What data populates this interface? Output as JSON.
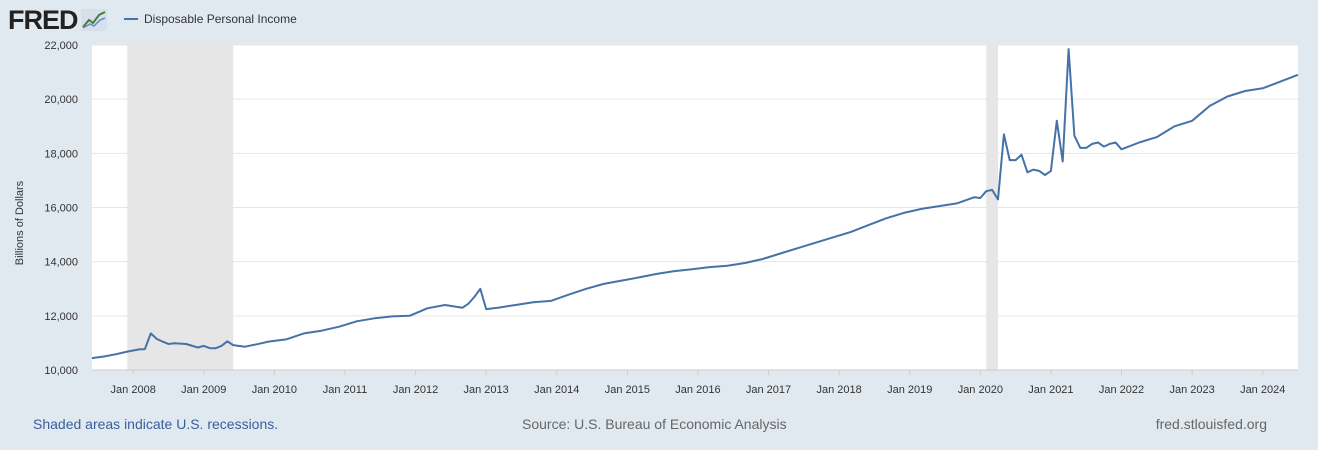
{
  "logo": {
    "text": "FRED",
    "icon": "fred-graph-icon"
  },
  "footer": {
    "recession_note": "Shaded areas indicate U.S. recessions.",
    "source": "Source: U.S. Bureau of Economic Analysis",
    "site": "fred.stlouisfed.org"
  },
  "colors": {
    "line": "#4572a7",
    "recession": "#e6e6e6",
    "grid": "#e6e6e6"
  },
  "chart_data": {
    "type": "line",
    "title": "",
    "xlabel": "",
    "ylabel": "Billions of Dollars",
    "legend": "top-left",
    "grid": true,
    "ylim": [
      10000,
      22000
    ],
    "yticks": [
      10000,
      12000,
      14000,
      16000,
      18000,
      20000,
      22000
    ],
    "ytick_labels": [
      "10,000",
      "12,000",
      "14,000",
      "16,000",
      "18,000",
      "20,000",
      "22,000"
    ],
    "xlim": [
      "2007-06",
      "2024-07"
    ],
    "xticks": [
      "2008-01",
      "2009-01",
      "2010-01",
      "2011-01",
      "2012-01",
      "2013-01",
      "2014-01",
      "2015-01",
      "2016-01",
      "2017-01",
      "2018-01",
      "2019-01",
      "2020-01",
      "2021-01",
      "2022-01",
      "2023-01",
      "2024-01"
    ],
    "xtick_labels": [
      "Jan 2008",
      "Jan 2009",
      "Jan 2010",
      "Jan 2011",
      "Jan 2012",
      "Jan 2013",
      "Jan 2014",
      "Jan 2015",
      "Jan 2016",
      "Jan 2017",
      "Jan 2018",
      "Jan 2019",
      "Jan 2020",
      "Jan 2021",
      "Jan 2022",
      "Jan 2023",
      "Jan 2024"
    ],
    "recessions": [
      [
        "2007-12",
        "2009-06"
      ],
      [
        "2020-02",
        "2020-04"
      ]
    ],
    "series": [
      {
        "name": "Disposable Personal Income",
        "x": [
          "2007-06",
          "2007-08",
          "2007-10",
          "2007-12",
          "2008-02",
          "2008-03",
          "2008-04",
          "2008-05",
          "2008-06",
          "2008-07",
          "2008-08",
          "2008-10",
          "2008-12",
          "2009-01",
          "2009-02",
          "2009-03",
          "2009-04",
          "2009-05",
          "2009-06",
          "2009-08",
          "2009-10",
          "2009-12",
          "2010-03",
          "2010-06",
          "2010-09",
          "2010-12",
          "2011-03",
          "2011-06",
          "2011-09",
          "2011-12",
          "2012-03",
          "2012-06",
          "2012-09",
          "2012-10",
          "2012-11",
          "2012-12",
          "2013-01",
          "2013-03",
          "2013-06",
          "2013-09",
          "2013-12",
          "2014-03",
          "2014-06",
          "2014-09",
          "2014-12",
          "2015-03",
          "2015-06",
          "2015-09",
          "2015-12",
          "2016-03",
          "2016-06",
          "2016-09",
          "2016-12",
          "2017-03",
          "2017-06",
          "2017-09",
          "2017-12",
          "2018-03",
          "2018-06",
          "2018-09",
          "2018-12",
          "2019-03",
          "2019-06",
          "2019-09",
          "2019-12",
          "2020-01",
          "2020-02",
          "2020-03",
          "2020-04",
          "2020-05",
          "2020-06",
          "2020-07",
          "2020-08",
          "2020-09",
          "2020-10",
          "2020-11",
          "2020-12",
          "2021-01",
          "2021-02",
          "2021-03",
          "2021-04",
          "2021-05",
          "2021-06",
          "2021-07",
          "2021-08",
          "2021-09",
          "2021-10",
          "2021-11",
          "2021-12",
          "2022-01",
          "2022-04",
          "2022-07",
          "2022-10",
          "2023-01",
          "2023-04",
          "2023-07",
          "2023-10",
          "2024-01",
          "2024-04",
          "2024-07"
        ],
        "values": [
          10440,
          10500,
          10580,
          10680,
          10760,
          10770,
          11350,
          11150,
          11050,
          10960,
          10990,
          10960,
          10830,
          10890,
          10810,
          10800,
          10890,
          11060,
          10920,
          10860,
          10950,
          11050,
          11130,
          11350,
          11450,
          11600,
          11800,
          11910,
          11980,
          12000,
          12280,
          12400,
          12300,
          12450,
          12700,
          13000,
          12250,
          12300,
          12400,
          12500,
          12550,
          12780,
          13000,
          13180,
          13300,
          13420,
          13550,
          13650,
          13720,
          13800,
          13850,
          13950,
          14100,
          14300,
          14500,
          14700,
          14900,
          15100,
          15350,
          15600,
          15800,
          15950,
          16050,
          16150,
          16380,
          16350,
          16600,
          16650,
          16300,
          18700,
          17750,
          17750,
          17950,
          17300,
          17400,
          17350,
          17200,
          17350,
          19200,
          17700,
          21850,
          18650,
          18200,
          18200,
          18350,
          18400,
          18250,
          18350,
          18400,
          18150,
          18400,
          18600,
          19000,
          19200,
          19750,
          20100,
          20300,
          20400,
          20650,
          20900
        ]
      }
    ]
  }
}
